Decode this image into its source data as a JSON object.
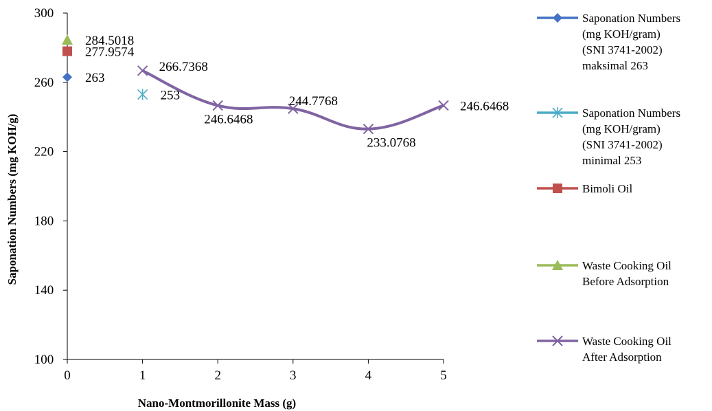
{
  "chart_data": {
    "type": "line",
    "xlabel": "Nano-Montmorillonite  Mass (g)",
    "ylabel": "Saponation Numbers (mg KOH/g)",
    "xlim": [
      0,
      5
    ],
    "ylim": [
      100,
      300
    ],
    "x_ticks": [
      "0",
      "1",
      "2",
      "3",
      "4",
      "5"
    ],
    "y_ticks": [
      "100",
      "140",
      "180",
      "220",
      "260",
      "300"
    ],
    "grid": false,
    "legend_position": "right",
    "series": [
      {
        "name": "Saponation Numbers (mg KOH/gram) (SNI 3741-2002) maksimal 263",
        "legend_lines": [
          "Saponation Numbers",
          "(mg KOH/gram)",
          "(SNI 3741-2002)",
          "maksimal 263"
        ],
        "color": "#4472c4",
        "marker": "diamond",
        "points": [
          {
            "x": 0,
            "y": 263,
            "label": "263"
          }
        ]
      },
      {
        "name": "Saponation Numbers (mg KOH/gram) (SNI 3741-2002) minimal 253",
        "legend_lines": [
          "Saponation Numbers",
          "(mg KOH/gram)",
          "(SNI 3741-2002)",
          "minimal 253"
        ],
        "color": "#4bacc6",
        "marker": "asterisk",
        "points": [
          {
            "x": 1,
            "y": 253,
            "label": "253"
          }
        ]
      },
      {
        "name": "Bimoli Oil",
        "legend_lines": [
          "Bimoli Oil"
        ],
        "color": "#c0504d",
        "marker": "square",
        "points": [
          {
            "x": 0,
            "y": 277.9574,
            "label": "277.9574"
          }
        ]
      },
      {
        "name": "Waste Cooking Oil Before Adsorption",
        "legend_lines": [
          "Waste Cooking Oil",
          "Before Adsorption"
        ],
        "color": "#9bbb59",
        "marker": "triangle",
        "points": [
          {
            "x": 0,
            "y": 284.5018,
            "label": "284.5018"
          }
        ]
      },
      {
        "name": "Waste Cooking Oil After Adsorption",
        "legend_lines": [
          "Waste Cooking Oil",
          "After Adsorption"
        ],
        "color": "#8064a2",
        "marker": "x",
        "smooth": true,
        "points": [
          {
            "x": 1,
            "y": 266.7368,
            "label": "266.7368"
          },
          {
            "x": 2,
            "y": 246.6468,
            "label": "246.6468"
          },
          {
            "x": 3,
            "y": 244.7768,
            "label": "244.7768"
          },
          {
            "x": 4,
            "y": 233.0768,
            "label": "233.0768"
          },
          {
            "x": 5,
            "y": 246.6468,
            "label": "246.6468"
          }
        ]
      }
    ]
  }
}
